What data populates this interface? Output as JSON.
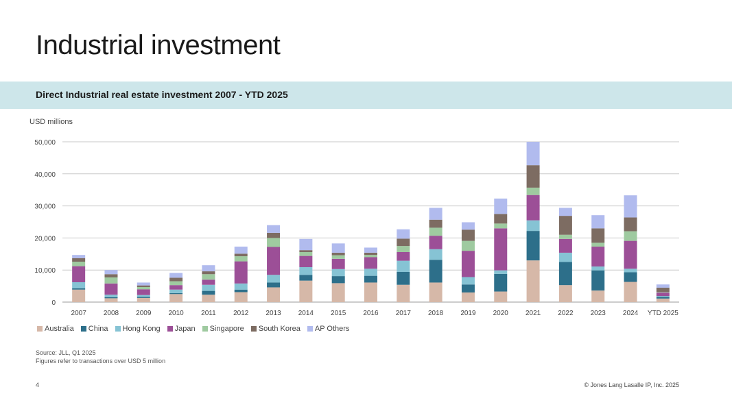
{
  "slide": {
    "title": "Industrial investment",
    "page_number": "4",
    "copyright": "© Jones Lang Lasalle IP, Inc. 2025"
  },
  "banner": {
    "title": "Direct Industrial real estate investment 2007 -  YTD 2025"
  },
  "unit_label": "USD millions",
  "source": {
    "line1": "Source: JLL, Q1 2025",
    "line2": "Figures refer to transactions over USD 5 million"
  },
  "chart_data": {
    "type": "bar",
    "stacked": true,
    "title": "Direct Industrial real estate investment 2007 -  YTD 2025",
    "ylabel": "USD millions",
    "ylim": [
      0,
      50000
    ],
    "yticks": [
      0,
      10000,
      20000,
      30000,
      40000,
      50000
    ],
    "ytick_labels": [
      "0",
      "10,000",
      "20,000",
      "30,000",
      "40,000",
      "50,000"
    ],
    "grid": true,
    "legend_position": "bottom-left",
    "categories": [
      "2007",
      "2008",
      "2009",
      "2010",
      "2011",
      "2012",
      "2013",
      "2014",
      "2015",
      "2016",
      "2017",
      "2018",
      "2019",
      "2020",
      "2021",
      "2022",
      "2023",
      "2024",
      "YTD 2025"
    ],
    "series": [
      {
        "name": "Australia",
        "color": "#d6b8a8",
        "values": [
          3900,
          1200,
          1300,
          2500,
          2300,
          3100,
          4600,
          6700,
          5900,
          6100,
          5400,
          6100,
          3000,
          3300,
          13000,
          5300,
          3600,
          6300,
          1100
        ]
      },
      {
        "name": "China",
        "color": "#2d6f8a",
        "values": [
          400,
          300,
          300,
          300,
          1200,
          800,
          1500,
          1800,
          2200,
          2100,
          4000,
          7100,
          2500,
          5500,
          9200,
          7200,
          6300,
          3000,
          500
        ]
      },
      {
        "name": "Hong Kong",
        "color": "#86c3d4",
        "values": [
          1900,
          800,
          600,
          1100,
          1900,
          1900,
          2400,
          2400,
          2200,
          2200,
          3500,
          3300,
          2300,
          1100,
          3300,
          2900,
          1200,
          1100,
          300
        ]
      },
      {
        "name": "Japan",
        "color": "#9c4f97",
        "values": [
          5000,
          3500,
          1800,
          1400,
          1600,
          6900,
          8700,
          3500,
          3200,
          3600,
          2700,
          4200,
          8200,
          13100,
          7900,
          4300,
          6200,
          8700,
          1100
        ]
      },
      {
        "name": "Singapore",
        "color": "#9fcaa0",
        "values": [
          1400,
          1900,
          700,
          1200,
          1700,
          1600,
          2800,
          1200,
          1100,
          700,
          1900,
          2500,
          3100,
          1500,
          2300,
          1300,
          1200,
          3000,
          200
        ]
      },
      {
        "name": "South Korea",
        "color": "#7d6c62",
        "values": [
          1100,
          1000,
          500,
          1100,
          900,
          800,
          1600,
          600,
          800,
          700,
          2300,
          2500,
          3500,
          3000,
          7000,
          5900,
          4500,
          4300,
          1300
        ]
      },
      {
        "name": "AP Others",
        "color": "#b1bbee",
        "values": [
          1000,
          1300,
          900,
          1500,
          1900,
          2200,
          2400,
          3500,
          2900,
          1600,
          2900,
          3700,
          2300,
          4800,
          7300,
          2500,
          4100,
          6900,
          1000
        ]
      }
    ]
  }
}
